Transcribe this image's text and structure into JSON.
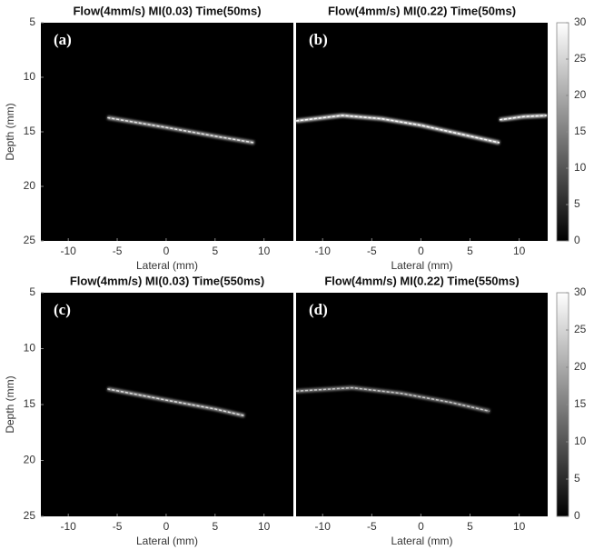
{
  "chart_data": [
    {
      "type": "image",
      "title": "Flow(4mm/s) MI(0.03) Time(50ms)",
      "panel_label": "(a)",
      "xlabel": "Lateral (mm)",
      "ylabel": "Depth (mm)",
      "xlim": [
        -12.8,
        13
      ],
      "xticks": [
        -10,
        -5,
        0,
        5,
        10
      ],
      "ylim": [
        5,
        25
      ],
      "yticks": [
        5,
        10,
        15,
        20,
        25
      ]
    },
    {
      "type": "image",
      "title": "Flow(4mm/s) MI(0.22) Time(50ms)",
      "panel_label": "(b)",
      "xlabel": "Lateral (mm)",
      "xlim": [
        -12.7,
        12.9
      ],
      "xticks": [
        -10,
        -5,
        0,
        5,
        10
      ],
      "ylim": [
        5,
        25
      ]
    },
    {
      "type": "colorbar",
      "ylim": [
        0,
        30
      ],
      "yticks": [
        0,
        5,
        10,
        15,
        20,
        25,
        30
      ]
    },
    {
      "type": "image",
      "title": "Flow(4mm/s) MI(0.03) Time(550ms)",
      "panel_label": "(c)",
      "xlabel": "Lateral (mm)",
      "ylabel": "Depth (mm)",
      "xlim": [
        -12.8,
        13
      ],
      "xticks": [
        -10,
        -5,
        0,
        5,
        10
      ],
      "ylim": [
        5,
        25
      ],
      "yticks": [
        5,
        10,
        15,
        20,
        25
      ]
    },
    {
      "type": "image",
      "title": "Flow(4mm/s) MI(0.22) Time(550ms)",
      "panel_label": "(d)",
      "xlabel": "Lateral (mm)",
      "xlim": [
        -12.7,
        12.9
      ],
      "xticks": [
        -10,
        -5,
        0,
        5,
        10
      ],
      "ylim": [
        5,
        25
      ]
    },
    {
      "type": "colorbar",
      "ylim": [
        0,
        30
      ],
      "yticks": [
        0,
        5,
        10,
        15,
        20,
        25,
        30
      ]
    }
  ]
}
